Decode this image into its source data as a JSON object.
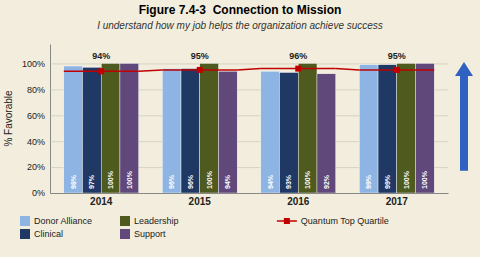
{
  "chart_data": {
    "type": "bar",
    "title": "Figure 7.4-3  Connection to Mission",
    "subtitle": "I understand how my job helps the organization achieve success",
    "categories": [
      "2014",
      "2015",
      "2016",
      "2017"
    ],
    "series": [
      {
        "name": "Donor Alliance",
        "color": "#8DB4E2",
        "values": [
          98,
          96,
          94,
          99
        ],
        "value_labels": [
          "98%",
          "96%",
          "94%",
          "99%"
        ]
      },
      {
        "name": "Clinical",
        "color": "#1F3864",
        "values": [
          97,
          96,
          93,
          99
        ],
        "value_labels": [
          "97%",
          "96%",
          "93%",
          "99%"
        ]
      },
      {
        "name": "Leadership",
        "color": "#4F5A1E",
        "values": [
          100,
          100,
          100,
          100
        ],
        "value_labels": [
          "100%",
          "100%",
          "100%",
          "100%"
        ]
      },
      {
        "name": "Support",
        "color": "#60497A",
        "values": [
          100,
          94,
          92,
          100
        ],
        "value_labels": [
          "100%",
          "94%",
          "92%",
          "100%"
        ]
      },
      {
        "name": "Quantum Top Quartile",
        "type": "line",
        "color": "#C00000",
        "marker": "square",
        "values": [
          94,
          95,
          96,
          95
        ],
        "value_labels": [
          "94%",
          "95%",
          "96%",
          "95%"
        ]
      }
    ],
    "ylabel": "% Favorable",
    "ylim": [
      0,
      115
    ],
    "yticks": [
      {
        "value": 0,
        "label": "0%"
      },
      {
        "value": 20,
        "label": "20%"
      },
      {
        "value": 40,
        "label": "40%"
      },
      {
        "value": 60,
        "label": "60%"
      },
      {
        "value": 80,
        "label": "80%"
      },
      {
        "value": 100,
        "label": "100%"
      }
    ],
    "grid": true,
    "legend": "bottom",
    "data_labels": true
  }
}
